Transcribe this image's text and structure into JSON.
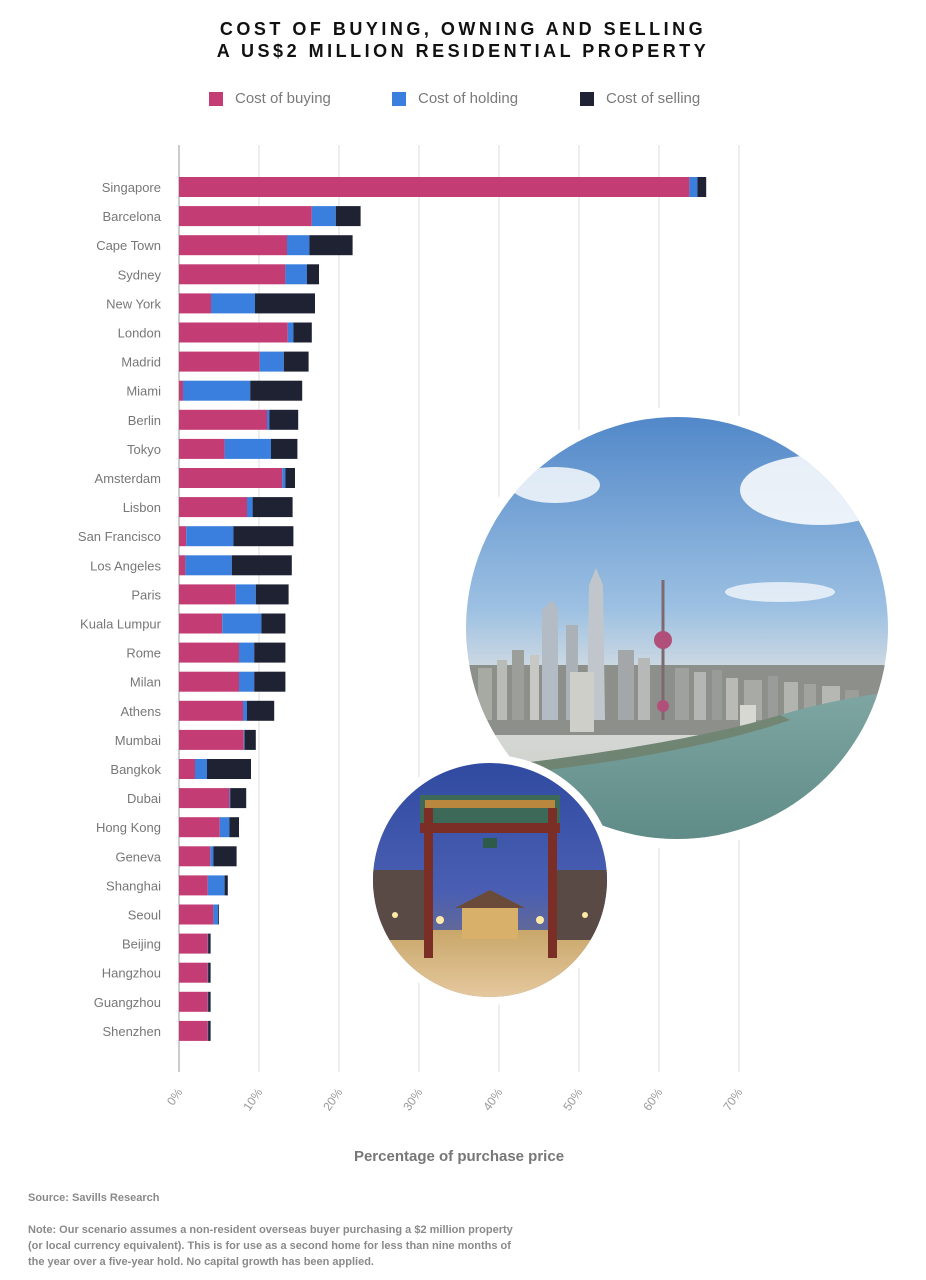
{
  "title_line1": "COST OF BUYING, OWNING AND SELLING",
  "title_line2": "A US$2 MILLION RESIDENTIAL PROPERTY",
  "colors": {
    "buying": "#c33c74",
    "holding": "#3a7fdd",
    "selling": "#1f2233",
    "grid": "#dcdcdc",
    "label": "#777777"
  },
  "source": "Source: Savills Research",
  "note": "Note: Our scenario assumes a non-resident overseas buyer purchasing a $2 million property (or local currency equivalent). This is for use as a second home for less than nine months of the year over a five-year hold. No capital growth has been applied.",
  "chart_data": {
    "type": "bar",
    "orientation": "horizontal",
    "stacked": true,
    "xlabel": "Percentage of purchase price",
    "xlim": [
      0,
      70
    ],
    "xticks": [
      "0%",
      "10%",
      "20%",
      "30%",
      "40%",
      "50%",
      "60%",
      "70%"
    ],
    "grid": true,
    "legend_position": "top",
    "categories": [
      "Singapore",
      "Barcelona",
      "Cape Town",
      "Sydney",
      "New York",
      "London",
      "Madrid",
      "Miami",
      "Berlin",
      "Tokyo",
      "Amsterdam",
      "Lisbon",
      "San Francisco",
      "Los Angeles",
      "Paris",
      "Kuala Lumpur",
      "Rome",
      "Milan",
      "Athens",
      "Mumbai",
      "Bangkok",
      "Dubai",
      "Hong Kong",
      "Geneva",
      "Shanghai",
      "Seoul",
      "Beijing",
      "Hangzhou",
      "Guangzhou",
      "Shenzhen"
    ],
    "series": [
      {
        "name": "Cost of buying",
        "values": [
          63.8,
          16.6,
          13.5,
          13.3,
          4.0,
          13.6,
          10.1,
          0.5,
          11.0,
          5.7,
          12.9,
          8.5,
          0.9,
          0.8,
          7.1,
          5.4,
          7.5,
          7.5,
          8.0,
          8.1,
          2.0,
          6.3,
          5.1,
          3.9,
          3.6,
          4.3,
          3.6,
          3.6,
          3.6,
          3.6
        ]
      },
      {
        "name": "Cost of holding",
        "values": [
          1.0,
          3.0,
          2.8,
          2.7,
          5.5,
          0.7,
          3.0,
          8.4,
          0.3,
          5.8,
          0.4,
          0.7,
          5.9,
          5.8,
          2.5,
          4.9,
          1.9,
          1.9,
          0.5,
          0.1,
          1.5,
          0.1,
          1.2,
          0.4,
          2.1,
          0.6,
          0.05,
          0.05,
          0.05,
          0.05
        ]
      },
      {
        "name": "Cost of selling",
        "values": [
          1.1,
          3.1,
          5.4,
          1.5,
          7.5,
          2.3,
          3.1,
          6.5,
          3.6,
          3.3,
          1.2,
          5.0,
          7.5,
          7.5,
          4.1,
          3.0,
          3.9,
          3.9,
          3.4,
          1.4,
          5.5,
          2.0,
          1.2,
          2.9,
          0.4,
          0.1,
          0.3,
          0.3,
          0.3,
          0.3
        ]
      }
    ]
  }
}
